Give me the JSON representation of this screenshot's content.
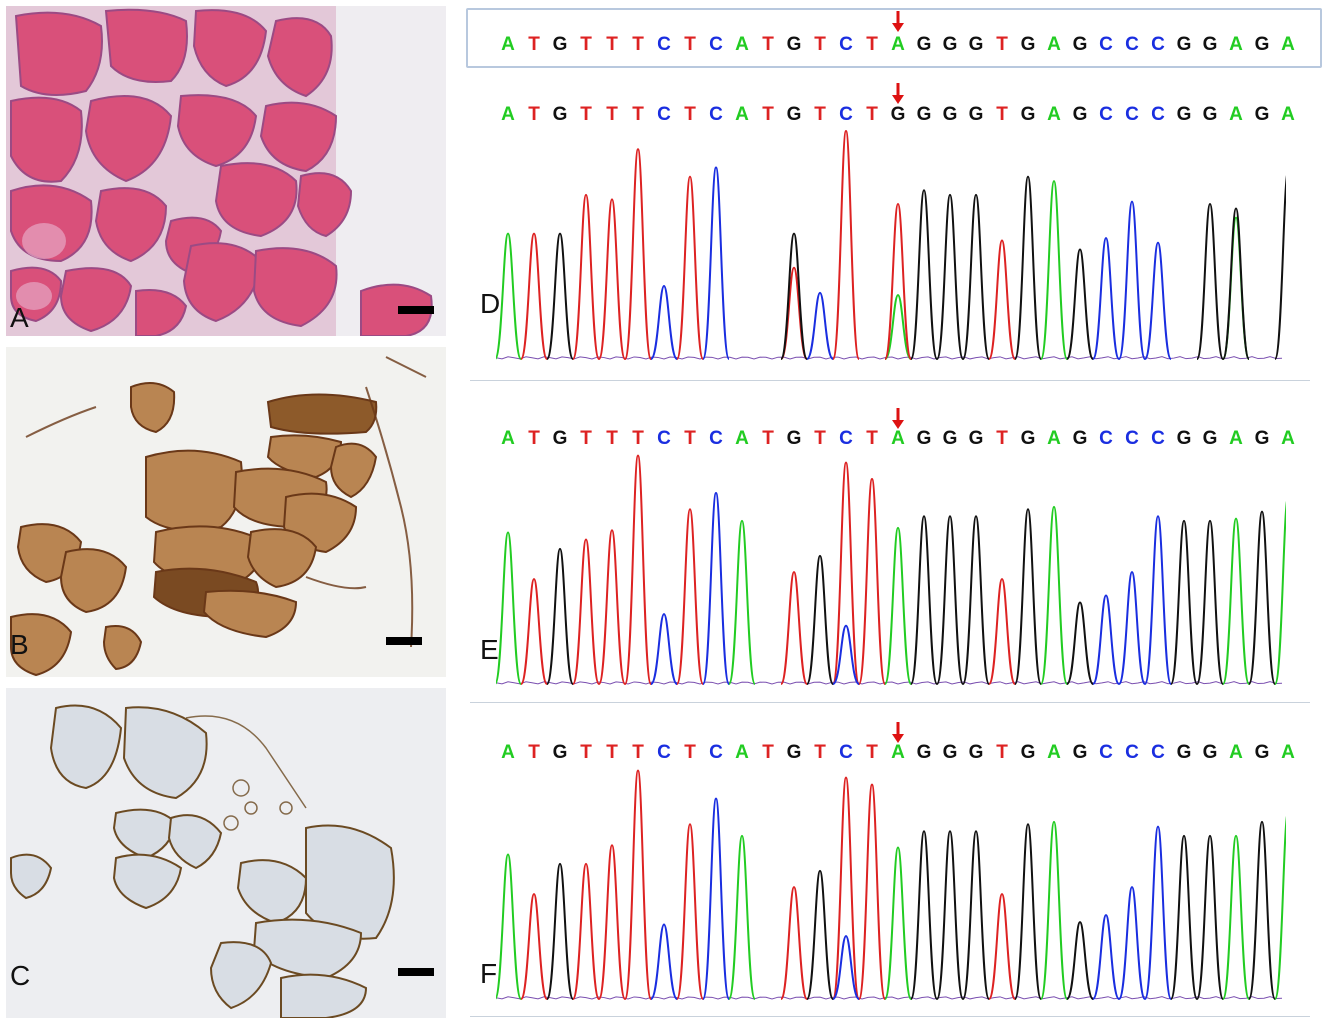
{
  "panels": {
    "A": {
      "label": "A",
      "stain": "H&E",
      "color_bg": "#f0eef1",
      "fiber": "#d9507a",
      "edge": "#8a3a72"
    },
    "B": {
      "label": "B",
      "stain": "immunohistochemistry brown diffuse",
      "color_bg": "#f2f2ee",
      "fiber": "#b07a44",
      "edge": "#6a3818"
    },
    "C": {
      "label": "C",
      "stain": "immunohistochemistry brown membrane",
      "color_bg": "#ecedf0",
      "fiber": "#d6dbe2",
      "edge": "#6b4a22"
    },
    "D": {
      "label": "D"
    },
    "E": {
      "label": "E"
    },
    "F": {
      "label": "F"
    }
  },
  "sequences": {
    "reference": "ATGTTTCTCATGTCTAGGGTGAGCCCGGAGA",
    "D": "ATGTTTCTCATGTCTGGGGTGAGCCCGGAGA",
    "E": "ATGTTTCTCATGTCTAGGGTGAGCCCGGAGA",
    "F": "ATGTTTCTCATGTCTAGGGTGAGCCCGGAGA"
  },
  "base_colors": {
    "A": "#22cc22",
    "T": "#dd2222",
    "G": "#111111",
    "C": "#1a2ee0"
  },
  "arrow_color": "#dd1111",
  "variant_position": 16,
  "chart_data": [
    {
      "type": "line",
      "panel": "D",
      "description_bases": "ATGTTTCTCATGTCTGGGGTGAGCCCGGAGA",
      "series": [
        {
          "name": "A",
          "peaks": [
            [
              1,
              0.55
            ],
            [
              16,
              0.28
            ],
            [
              22,
              0.78
            ],
            [
              29,
              0.62
            ]
          ]
        },
        {
          "name": "T",
          "peaks": [
            [
              2,
              0.55
            ],
            [
              4,
              0.72
            ],
            [
              5,
              0.7
            ],
            [
              6,
              0.92
            ],
            [
              8,
              0.8
            ],
            [
              12,
              0.4
            ],
            [
              14,
              1.0
            ],
            [
              16,
              0.68
            ],
            [
              20,
              0.52
            ]
          ]
        },
        {
          "name": "G",
          "peaks": [
            [
              3,
              0.55
            ],
            [
              12,
              0.55
            ],
            [
              17,
              0.74
            ],
            [
              18,
              0.72
            ],
            [
              19,
              0.72
            ],
            [
              21,
              0.8
            ],
            [
              23,
              0.48
            ],
            [
              28,
              0.68
            ],
            [
              29,
              0.66
            ],
            [
              31,
              0.82
            ]
          ]
        },
        {
          "name": "C",
          "peaks": [
            [
              7,
              0.32
            ],
            [
              9,
              0.84
            ],
            [
              13,
              0.29
            ],
            [
              24,
              0.53
            ],
            [
              25,
              0.69
            ],
            [
              26,
              0.51
            ]
          ]
        }
      ]
    },
    {
      "type": "line",
      "panel": "E",
      "series": [
        {
          "name": "A",
          "peaks": [
            [
              1,
              0.65
            ],
            [
              10,
              0.7
            ],
            [
              16,
              0.67
            ],
            [
              22,
              0.76
            ],
            [
              29,
              0.71
            ],
            [
              31,
              0.8
            ]
          ]
        },
        {
          "name": "T",
          "peaks": [
            [
              2,
              0.45
            ],
            [
              4,
              0.62
            ],
            [
              5,
              0.66
            ],
            [
              6,
              0.98
            ],
            [
              8,
              0.75
            ],
            [
              12,
              0.48
            ],
            [
              14,
              0.95
            ],
            [
              15,
              0.88
            ],
            [
              20,
              0.45
            ]
          ]
        },
        {
          "name": "G",
          "peaks": [
            [
              3,
              0.58
            ],
            [
              13,
              0.55
            ],
            [
              17,
              0.72
            ],
            [
              18,
              0.72
            ],
            [
              19,
              0.72
            ],
            [
              21,
              0.75
            ],
            [
              23,
              0.35
            ],
            [
              27,
              0.7
            ],
            [
              28,
              0.7
            ],
            [
              30,
              0.74
            ]
          ]
        },
        {
          "name": "C",
          "peaks": [
            [
              7,
              0.3
            ],
            [
              9,
              0.82
            ],
            [
              14,
              0.25
            ],
            [
              24,
              0.38
            ],
            [
              25,
              0.48
            ],
            [
              26,
              0.72
            ]
          ]
        }
      ]
    },
    {
      "type": "line",
      "panel": "F",
      "series": [
        {
          "name": "A",
          "peaks": [
            [
              1,
              0.62
            ],
            [
              10,
              0.7
            ],
            [
              16,
              0.65
            ],
            [
              22,
              0.76
            ],
            [
              29,
              0.7
            ],
            [
              31,
              0.8
            ]
          ]
        },
        {
          "name": "T",
          "peaks": [
            [
              2,
              0.45
            ],
            [
              4,
              0.58
            ],
            [
              5,
              0.66
            ],
            [
              6,
              0.98
            ],
            [
              8,
              0.75
            ],
            [
              12,
              0.48
            ],
            [
              14,
              0.95
            ],
            [
              15,
              0.92
            ],
            [
              20,
              0.45
            ]
          ]
        },
        {
          "name": "G",
          "peaks": [
            [
              3,
              0.58
            ],
            [
              13,
              0.55
            ],
            [
              17,
              0.72
            ],
            [
              18,
              0.72
            ],
            [
              19,
              0.72
            ],
            [
              21,
              0.75
            ],
            [
              23,
              0.33
            ],
            [
              27,
              0.7
            ],
            [
              28,
              0.7
            ],
            [
              30,
              0.76
            ]
          ]
        },
        {
          "name": "C",
          "peaks": [
            [
              7,
              0.32
            ],
            [
              9,
              0.86
            ],
            [
              14,
              0.27
            ],
            [
              24,
              0.36
            ],
            [
              25,
              0.48
            ],
            [
              26,
              0.74
            ]
          ]
        }
      ]
    }
  ]
}
